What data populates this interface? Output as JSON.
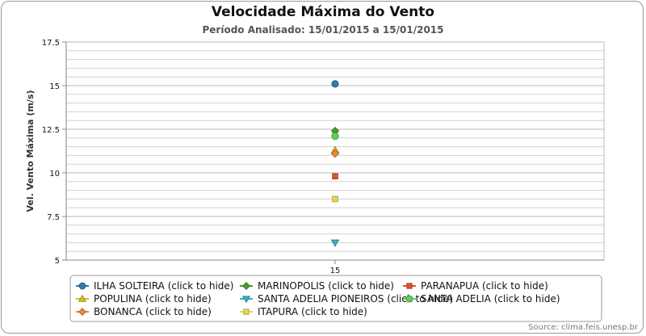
{
  "chart_data": {
    "type": "scatter",
    "title": "Velocidade Máxima do Vento",
    "subtitle": "Período Analisado: 15/01/2015 a 15/01/2015",
    "ylabel": "Vel. Vento Máxima (m/s)",
    "xlabel": "",
    "ylim": [
      5,
      17.5
    ],
    "yticks": [
      "5",
      "7.5",
      "10",
      "12.5",
      "15",
      "17.5"
    ],
    "categories": [
      "15"
    ],
    "grid": true,
    "legend_position": "bottom",
    "series": [
      {
        "name": "ILHA SOLTEIRA",
        "color": "#2f7ea8",
        "marker": "circle",
        "values": [
          15.1
        ]
      },
      {
        "name": "MARINOPOLIS",
        "color": "#4e9a2a",
        "marker": "diamond",
        "values": [
          12.4
        ]
      },
      {
        "name": "PARANAPUA",
        "color": "#d9542a",
        "marker": "square",
        "values": [
          9.8
        ]
      },
      {
        "name": "POPULINA",
        "color": "#cfc21a",
        "marker": "triangle",
        "values": [
          11.3
        ]
      },
      {
        "name": "SANTA ADELIA PIONEIROS",
        "color": "#3ab0c0",
        "marker": "triangle-down",
        "values": [
          6.0
        ]
      },
      {
        "name": "SANTA ADELIA",
        "color": "#5ccf5c",
        "marker": "circle",
        "values": [
          12.1
        ]
      },
      {
        "name": "BONANCA",
        "color": "#e8883a",
        "marker": "diamond",
        "values": [
          11.1
        ]
      },
      {
        "name": "ITAPURA",
        "color": "#e6d84a",
        "marker": "square",
        "values": [
          8.5
        ]
      }
    ]
  },
  "legend": {
    "suffix": " (click to hide)"
  },
  "source": "Source: clima.feis.unesp.br"
}
